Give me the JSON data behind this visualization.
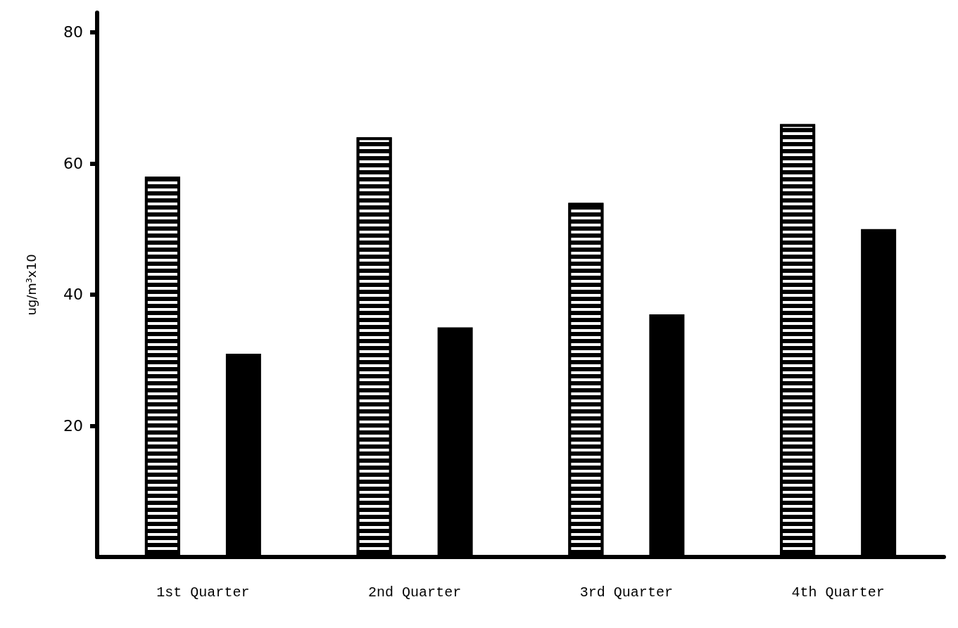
{
  "chart_data": {
    "type": "bar",
    "ylabel": "ug/m³x10",
    "categories": [
      "1st Quarter",
      "2nd Quarter",
      "3rd Quarter",
      "4th Quarter"
    ],
    "series": [
      {
        "color": "#000000",
        "values": [
          58,
          64,
          54,
          66
        ]
      },
      {
        "color": "#000000",
        "values": [
          31,
          35,
          37,
          50
        ]
      }
    ],
    "ylim": [
      0,
      83
    ],
    "yticks": [
      20,
      40,
      60,
      80
    ],
    "grid": false
  }
}
